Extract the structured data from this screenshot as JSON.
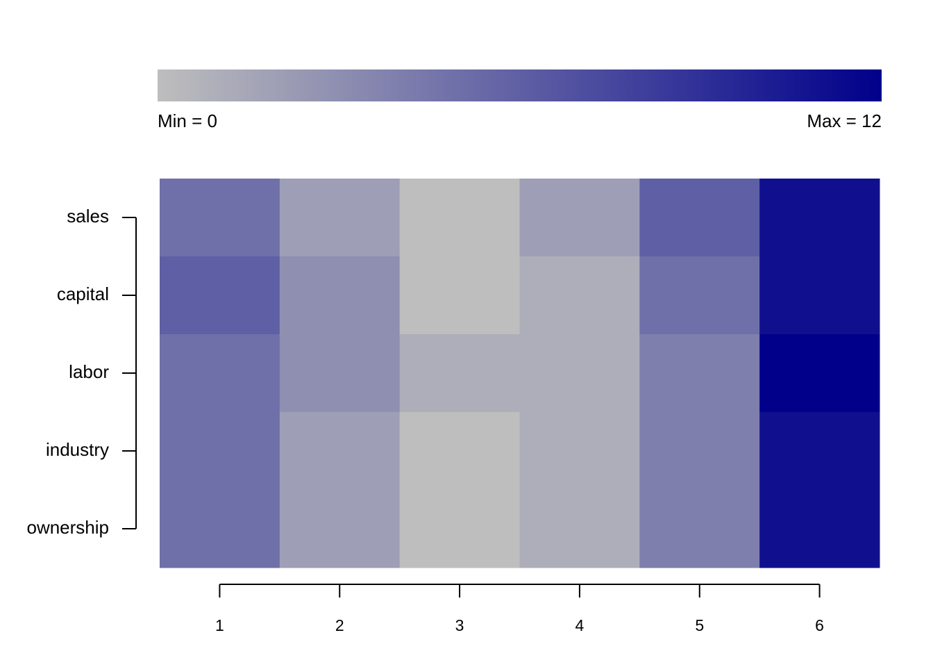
{
  "chart_data": {
    "type": "heatmap",
    "x": [
      1,
      2,
      3,
      4,
      5,
      6
    ],
    "y_categories": [
      "sales",
      "capital",
      "labor",
      "industry",
      "ownership"
    ],
    "values": [
      [
        5,
        2,
        0,
        2,
        6,
        11
      ],
      [
        6,
        3,
        0,
        1,
        5,
        11
      ],
      [
        5,
        3,
        1,
        1,
        4,
        12
      ],
      [
        5,
        2,
        0,
        1,
        4,
        11
      ],
      [
        5,
        2,
        0,
        1,
        4,
        11
      ]
    ],
    "colorbar": {
      "min": 0,
      "max": 12,
      "min_label": "Min = 0",
      "max_label": "Max = 12",
      "low_color": "#bebebe",
      "high_color": "#00008b"
    }
  }
}
